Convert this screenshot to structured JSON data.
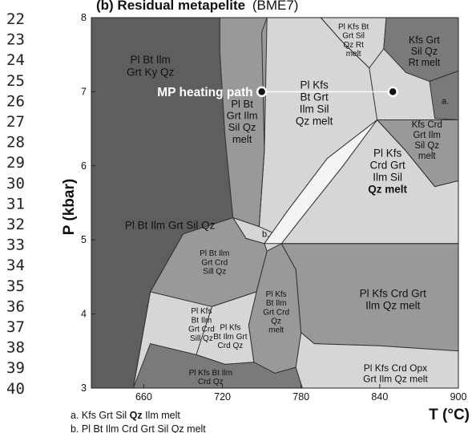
{
  "line_numbers": [
    "22",
    "23",
    "24",
    "25",
    "26",
    "27",
    "28",
    "29",
    "30",
    "31",
    "32",
    "33",
    "34",
    "35",
    "36",
    "37",
    "38",
    "39",
    "40"
  ],
  "chart_data": {
    "type": "phase-diagram",
    "title_bold": "(b) Residual metapelite",
    "title_suffix": "(BME7)",
    "xlabel": "T (°C)",
    "ylabel": "P (kbar)",
    "xlim": [
      620,
      900
    ],
    "ylim": [
      3,
      8
    ],
    "x_ticks": [
      660,
      720,
      780,
      840,
      900
    ],
    "y_ticks": [
      3,
      4,
      5,
      6,
      7,
      8
    ],
    "colors": {
      "darkest": "#5e5e5e",
      "dark": "#7a7a7a",
      "mid": "#999999",
      "light": "#b5b5b5",
      "lightest": "#d6d6d6",
      "boundary": "#333333",
      "marker": "#111111",
      "path": "#ffffff"
    },
    "heating_path": {
      "label": "MP heating path",
      "start": [
        750,
        7.0
      ],
      "end": [
        850,
        7.0
      ]
    },
    "fields": [
      {
        "name": "field-pl-bt-ilm-grt-ky-qz",
        "lines": [
          "Pl Bt Ilm",
          "Grt Ky Qz"
        ],
        "tone": "darkest",
        "poly": [
          [
            620,
            8
          ],
          [
            718,
            8
          ],
          [
            718,
            7.55
          ],
          [
            722,
            6.4
          ],
          [
            728,
            5.3
          ],
          [
            690,
            5.08
          ],
          [
            665,
            4.3
          ],
          [
            652,
            3
          ],
          [
            620,
            3
          ]
        ],
        "label_at": [
          665,
          7.35
        ],
        "size": 13.5,
        "bold_last": false
      },
      {
        "name": "field-pl-bt-ilm-grt-sil-qz",
        "lines": [
          "Pl Bt Ilm Grt Sil Qz"
        ],
        "tone": "darkest",
        "poly": [],
        "label_at": [
          680,
          5.2
        ],
        "size": 13.5,
        "bold_last": false
      },
      {
        "name": "field-pl-bt-grt-ilm-sil-qz-melt",
        "lines": [
          "Pl Bt",
          "Grt Ilm",
          "Sil Qz",
          "melt"
        ],
        "tone": "mid",
        "poly": [
          [
            718,
            8
          ],
          [
            754,
            8
          ],
          [
            752,
            6.2
          ],
          [
            748,
            5.18
          ],
          [
            728,
            5.3
          ],
          [
            722,
            6.4
          ],
          [
            718,
            7.55
          ]
        ],
        "label_at": [
          735,
          6.6
        ],
        "size": 13,
        "bold_last": false
      },
      {
        "name": "field-pl-kfs-bt-grt-sil-qz-rt-melt",
        "lines": [
          "Pl Kfs Bt",
          "Grt Sil",
          "Qz Rt",
          "melt"
        ],
        "tone": "lightest",
        "poly": [
          [
            795,
            8
          ],
          [
            845,
            8
          ],
          [
            843,
            7.58
          ],
          [
            832,
            7.32
          ],
          [
            810,
            7.7
          ]
        ],
        "label_at": [
          820,
          7.7
        ],
        "size": 10,
        "bold_last": false
      },
      {
        "name": "field-kfs-grt-sil-qz-rt-melt",
        "lines": [
          "Kfs Grt",
          "Sil Qz",
          "Rt melt"
        ],
        "tone": "dark",
        "poly": [
          [
            845,
            8
          ],
          [
            900,
            8
          ],
          [
            900,
            7.28
          ],
          [
            878,
            7.14
          ],
          [
            860,
            7.26
          ],
          [
            843,
            7.58
          ]
        ],
        "label_at": [
          874,
          7.55
        ],
        "size": 12.5,
        "bold_last": false
      },
      {
        "name": "field-pl-kfs-bt-grt-ilm-sil-qz-melt",
        "lines": [
          "Pl Kfs",
          "Bt Grt",
          "Ilm Sil",
          "Qz melt"
        ],
        "tone": "lightest",
        "poly": [],
        "label_at": [
          790,
          6.85
        ],
        "size": 13.5,
        "bold_last": false
      },
      {
        "name": "field-a",
        "lines": [
          "a."
        ],
        "tone": "dark",
        "poly": [
          [
            878,
            7.14
          ],
          [
            900,
            7.28
          ],
          [
            900,
            6.62
          ],
          [
            882,
            6.64
          ]
        ],
        "label_at": [
          890,
          6.88
        ],
        "size": 11,
        "bold_last": false
      },
      {
        "name": "field-pl-kfs-crd-grt-ilm-sil-qz-melt",
        "lines": [
          "Pl Kfs",
          "Crd Grt",
          "Ilm Sil",
          "Qz melt"
        ],
        "tone": "lightest",
        "poly": [],
        "label_at": [
          846,
          5.93
        ],
        "size": 13.5,
        "bold_last": true
      },
      {
        "name": "field-kfs-crd-grt-ilm-sil-qz-melt",
        "lines": [
          "Kfs Crd",
          "Grt Ilm",
          "Sil Qz",
          "melt"
        ],
        "tone": "mid",
        "poly": [
          [
            838,
            6.62
          ],
          [
            900,
            6.62
          ],
          [
            900,
            5.8
          ],
          [
            882,
            5.72
          ],
          [
            860,
            6.2
          ]
        ],
        "label_at": [
          876,
          6.35
        ],
        "size": 11.5,
        "bold_last": false
      },
      {
        "name": "field-b",
        "lines": [
          "b."
        ],
        "tone": "lightest",
        "poly": [
          [
            728,
            5.3
          ],
          [
            748,
            5.18
          ],
          [
            758,
            5.1
          ],
          [
            752,
            4.95
          ],
          [
            738,
            5.02
          ]
        ],
        "label_at": [
          753,
          5.08
        ],
        "size": 11,
        "bold_last": false
      },
      {
        "name": "field-pl-bt-ilm-grt-crd-sill-qz",
        "lines": [
          "Pl Bt Ilm",
          "Grt Crd",
          "Sill Qz"
        ],
        "tone": "mid",
        "poly": [
          [
            690,
            5.08
          ],
          [
            728,
            5.3
          ],
          [
            738,
            5.02
          ],
          [
            752,
            4.95
          ],
          [
            754,
            4.85
          ],
          [
            746,
            4.3
          ],
          [
            712,
            4.1
          ],
          [
            665,
            4.3
          ]
        ],
        "label_at": [
          714,
          4.7
        ],
        "size": 10,
        "bold_last": false
      },
      {
        "name": "field-pl-kfs-bt-ilm-grt-crd-sill-qz",
        "lines": [
          "Pl Kfs",
          "Bt Ilm",
          "Grt Crd",
          "Sill Qz"
        ],
        "tone": "light",
        "poly": [],
        "label_at": [
          704,
          3.86
        ],
        "size": 10,
        "bold_last": false
      },
      {
        "name": "field-pl-kfs-bt-ilm-grt-crd-qz-melt",
        "lines": [
          "Pl Kfs",
          "Bt Ilm",
          "Grt Crd",
          "Qz",
          "melt"
        ],
        "tone": "mid",
        "poly": [
          [
            746,
            4.3
          ],
          [
            754,
            4.85
          ],
          [
            765,
            4.95
          ],
          [
            776,
            4.6
          ],
          [
            780,
            3.75
          ],
          [
            776,
            3.28
          ],
          [
            760,
            3.2
          ],
          [
            744,
            3.35
          ],
          [
            740,
            3.85
          ]
        ],
        "label_at": [
          761,
          4.03
        ],
        "size": 10,
        "bold_last": false
      },
      {
        "name": "field-pl-kfs-bt-ilm-grt-crd-qz",
        "lines": [
          "Pl Kfs",
          "Bt Ilm Grt",
          "Crd Qz"
        ],
        "tone": "lightest",
        "poly": [
          [
            712,
            4.1
          ],
          [
            746,
            4.3
          ],
          [
            740,
            3.85
          ],
          [
            744,
            3.35
          ],
          [
            722,
            3.32
          ],
          [
            700,
            3.45
          ]
        ],
        "label_at": [
          726,
          3.7
        ],
        "size": 10,
        "bold_last": false
      },
      {
        "name": "field-pl-kfs-bt-ilm-crd-qz",
        "lines": [
          "Pl Kfs Bt Ilm",
          "Crd Qz"
        ],
        "tone": "dark",
        "poly": [
          [
            652,
            3
          ],
          [
            665,
            3.6
          ],
          [
            700,
            3.45
          ],
          [
            722,
            3.32
          ],
          [
            744,
            3.35
          ],
          [
            760,
            3.2
          ],
          [
            776,
            3.28
          ],
          [
            781,
            3
          ],
          [
            652,
            3
          ]
        ],
        "label_at": [
          711,
          3.15
        ],
        "size": 10,
        "bold_last": false
      },
      {
        "name": "field-pl-kfs-crd-grt-ilm-qz-melt",
        "lines": [
          "Pl Kfs Crd Grt",
          "Ilm Qz melt"
        ],
        "tone": "mid",
        "poly": [
          [
            765,
            4.95
          ],
          [
            900,
            4.95
          ],
          [
            900,
            3.5
          ],
          [
            840,
            3.57
          ],
          [
            790,
            3.6
          ],
          [
            780,
            3.75
          ],
          [
            776,
            4.6
          ]
        ],
        "label_at": [
          850,
          4.2
        ],
        "size": 13.5,
        "bold_last": false
      },
      {
        "name": "field-pl-kfs-crd-opx-grt-ilm-qz-melt",
        "lines": [
          "Pl Kfs Crd Opx",
          "Grt Ilm Qz melt"
        ],
        "tone": "lightest",
        "poly": [
          [
            790,
            3.6
          ],
          [
            840,
            3.57
          ],
          [
            900,
            3.5
          ],
          [
            900,
            3
          ],
          [
            781,
            3
          ],
          [
            776,
            3.28
          ],
          [
            780,
            3.75
          ]
        ],
        "label_at": [
          852,
          3.2
        ],
        "size": 12,
        "bold_last": false
      }
    ],
    "footnotes": [
      {
        "prefix": "a.",
        "text": "Kfs Grt Sil",
        "bold": "Qz",
        "rest": "Ilm melt"
      },
      {
        "prefix": "b.",
        "text": "Pl Bt Ilm Crd Grt Sil Qz melt",
        "bold": "",
        "rest": ""
      }
    ]
  }
}
